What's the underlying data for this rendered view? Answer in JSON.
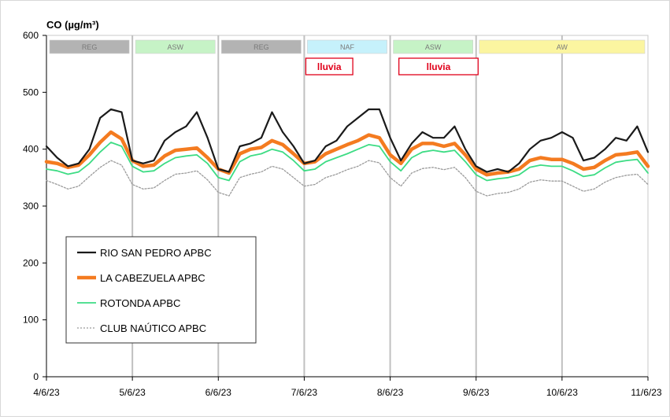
{
  "chart_data": {
    "type": "line",
    "title": "CO (µg/m³)",
    "xlabel": "",
    "ylabel": "",
    "ylim": [
      0,
      600
    ],
    "yticks": [
      0,
      100,
      200,
      300,
      400,
      500,
      600
    ],
    "xlim": [
      "2023-06-04",
      "2023-06-11"
    ],
    "xtick_labels": [
      "4/6/23",
      "5/6/23",
      "6/6/23",
      "7/6/23",
      "8/6/23",
      "9/6/23",
      "10/6/23",
      "11/6/23"
    ],
    "grid": "vertical lines at day boundaries",
    "legend_position": "lower-left",
    "periods": [
      {
        "label": "REG",
        "start": "2023-06-04",
        "end": "2023-06-05",
        "color": "#b3b3b3"
      },
      {
        "label": "ASW",
        "start": "2023-06-05",
        "end": "2023-06-06",
        "color": "#c6f3c6"
      },
      {
        "label": "REG",
        "start": "2023-06-06",
        "end": "2023-06-07",
        "color": "#b3b3b3"
      },
      {
        "label": "NAF",
        "start": "2023-06-07",
        "end": "2023-06-08",
        "color": "#c6f1fb"
      },
      {
        "label": "ASW",
        "start": "2023-06-08",
        "end": "2023-06-09",
        "color": "#c6f3c6"
      },
      {
        "label": "AW",
        "start": "2023-06-09",
        "end": "2023-06-11",
        "color": "#fbf5a0"
      }
    ],
    "annotations": [
      {
        "text": "lluvia",
        "start": "2023-06-07",
        "end": "2023-06-07 14:00",
        "color": "#e0001a"
      },
      {
        "text": "lluvia",
        "start": "2023-06-08 02:00",
        "end": "2023-06-09 01:00",
        "color": "#e0001a"
      }
    ],
    "x": [
      "2023-06-04 00:00",
      "2023-06-04 03:00",
      "2023-06-04 06:00",
      "2023-06-04 09:00",
      "2023-06-04 12:00",
      "2023-06-04 15:00",
      "2023-06-04 18:00",
      "2023-06-04 21:00",
      "2023-06-05 00:00",
      "2023-06-05 03:00",
      "2023-06-05 06:00",
      "2023-06-05 09:00",
      "2023-06-05 12:00",
      "2023-06-05 15:00",
      "2023-06-05 18:00",
      "2023-06-05 21:00",
      "2023-06-06 00:00",
      "2023-06-06 03:00",
      "2023-06-06 06:00",
      "2023-06-06 09:00",
      "2023-06-06 12:00",
      "2023-06-06 15:00",
      "2023-06-06 18:00",
      "2023-06-06 21:00",
      "2023-06-07 00:00",
      "2023-06-07 03:00",
      "2023-06-07 06:00",
      "2023-06-07 09:00",
      "2023-06-07 12:00",
      "2023-06-07 15:00",
      "2023-06-07 18:00",
      "2023-06-07 21:00",
      "2023-06-08 00:00",
      "2023-06-08 03:00",
      "2023-06-08 06:00",
      "2023-06-08 09:00",
      "2023-06-08 12:00",
      "2023-06-08 15:00",
      "2023-06-08 18:00",
      "2023-06-08 21:00",
      "2023-06-09 00:00",
      "2023-06-09 03:00",
      "2023-06-09 06:00",
      "2023-06-09 09:00",
      "2023-06-09 12:00",
      "2023-06-09 15:00",
      "2023-06-09 18:00",
      "2023-06-09 21:00",
      "2023-06-10 00:00",
      "2023-06-10 03:00",
      "2023-06-10 06:00",
      "2023-06-10 09:00",
      "2023-06-10 12:00",
      "2023-06-10 15:00",
      "2023-06-10 18:00",
      "2023-06-10 21:00",
      "2023-06-11 00:00"
    ],
    "series": [
      {
        "name": "RIO SAN PEDRO APBC",
        "color": "#1a1a1a",
        "width": 2.2,
        "dash": "",
        "values": [
          405,
          385,
          370,
          375,
          400,
          455,
          470,
          465,
          380,
          375,
          380,
          415,
          430,
          440,
          465,
          420,
          365,
          360,
          405,
          410,
          420,
          465,
          430,
          405,
          375,
          380,
          405,
          415,
          440,
          455,
          470,
          470,
          420,
          380,
          410,
          430,
          420,
          420,
          440,
          400,
          370,
          360,
          365,
          360,
          375,
          400,
          415,
          420,
          430,
          420,
          380,
          385,
          400,
          420,
          415,
          440,
          395
        ]
      },
      {
        "name": "LA CABEZUELA  APBC",
        "color": "#f47b20",
        "width": 4.5,
        "dash": "",
        "values": [
          378,
          375,
          368,
          372,
          390,
          412,
          430,
          418,
          380,
          370,
          372,
          388,
          398,
          400,
          402,
          385,
          365,
          358,
          392,
          400,
          403,
          415,
          408,
          392,
          375,
          378,
          392,
          400,
          408,
          415,
          425,
          420,
          390,
          375,
          400,
          410,
          410,
          405,
          410,
          390,
          365,
          355,
          358,
          360,
          365,
          380,
          385,
          382,
          382,
          375,
          365,
          368,
          380,
          390,
          392,
          395,
          370
        ]
      },
      {
        "name": "ROTONDA  APBC",
        "color": "#3ddc84",
        "width": 1.8,
        "dash": "",
        "values": [
          365,
          362,
          356,
          360,
          375,
          395,
          412,
          405,
          370,
          360,
          362,
          375,
          385,
          388,
          390,
          375,
          350,
          345,
          378,
          388,
          392,
          400,
          395,
          380,
          362,
          365,
          378,
          385,
          392,
          400,
          408,
          405,
          378,
          362,
          385,
          395,
          398,
          395,
          398,
          378,
          355,
          345,
          348,
          350,
          355,
          368,
          372,
          370,
          370,
          362,
          352,
          355,
          367,
          377,
          380,
          382,
          358
        ]
      },
      {
        "name": "CLUB NAÚTICO  APBC",
        "color": "#9a9a9a",
        "width": 1.3,
        "dash": "2,2",
        "values": [
          345,
          338,
          330,
          335,
          352,
          368,
          380,
          372,
          338,
          330,
          332,
          345,
          356,
          358,
          362,
          346,
          324,
          318,
          350,
          356,
          360,
          370,
          365,
          350,
          335,
          338,
          350,
          356,
          364,
          370,
          380,
          376,
          350,
          335,
          358,
          366,
          368,
          364,
          368,
          350,
          326,
          318,
          322,
          324,
          330,
          342,
          346,
          344,
          344,
          335,
          326,
          330,
          342,
          350,
          354,
          356,
          338
        ]
      }
    ]
  }
}
